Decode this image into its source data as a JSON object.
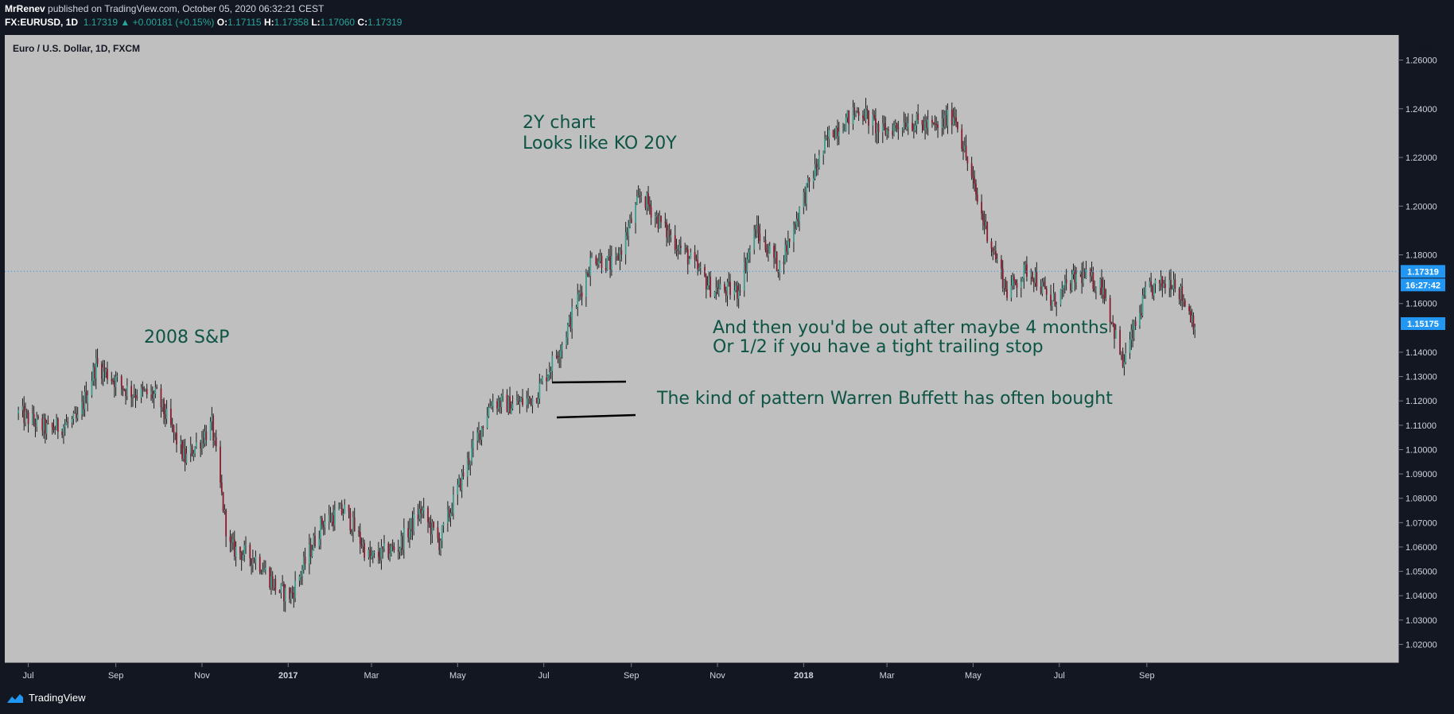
{
  "header": {
    "author": "MrRenev",
    "published": "published on TradingView.com, October 05, 2020 06:32:21 CEST",
    "symbol": "FX:EURUSD, 1D",
    "last": "1.17319",
    "change": "+0.00181 (+0.15%)",
    "o_label": "O:",
    "o": "1.17115",
    "h_label": "H:",
    "h": "1.17358",
    "l_label": "L:",
    "l": "1.17060",
    "c_label": "C:",
    "c": "1.17319"
  },
  "chart": {
    "legend": "Euro / U.S. Dollar, 1D, FXCM",
    "currency": "USD",
    "price_tag": "1.17319",
    "countdown": "16:27:42",
    "secondary_tag": "1.15175"
  },
  "footer": {
    "brand": "TradingView"
  },
  "colors": {
    "background": "#131722",
    "plot": "#bfbfbf",
    "up": "#3d9c8c",
    "down": "#8b1a2e",
    "annotation": "#0e5445",
    "tag": "#2196f3"
  },
  "chart_data": {
    "type": "candlestick",
    "title": "Euro / U.S. Dollar, 1D, FXCM",
    "y_range": [
      1.0123,
      1.2703
    ],
    "y_ticks": [
      "1.26000",
      "1.24000",
      "1.22000",
      "1.20000",
      "1.18000",
      "1.16000",
      "1.14000",
      "1.13000",
      "1.12000",
      "1.11000",
      "1.10000",
      "1.09000",
      "1.08000",
      "1.07000",
      "1.06000",
      "1.05000",
      "1.04000",
      "1.03000",
      "1.02000"
    ],
    "x_ticks": [
      "Jul",
      "Sep",
      "Nov",
      "2017",
      "Mar",
      "May",
      "Jul",
      "Sep",
      "Nov",
      "2018",
      "Mar",
      "May",
      "Jul",
      "Sep"
    ],
    "path": [
      {
        "date": "2016-06-24",
        "price": 1.115
      },
      {
        "date": "2016-07-15",
        "price": 1.108
      },
      {
        "date": "2016-08-05",
        "price": 1.112
      },
      {
        "date": "2016-08-18",
        "price": 1.135
      },
      {
        "date": "2016-09-10",
        "price": 1.124
      },
      {
        "date": "2016-09-30",
        "price": 1.122
      },
      {
        "date": "2016-10-20",
        "price": 1.096
      },
      {
        "date": "2016-11-08",
        "price": 1.11
      },
      {
        "date": "2016-11-20",
        "price": 1.06
      },
      {
        "date": "2016-12-10",
        "price": 1.055
      },
      {
        "date": "2016-12-25",
        "price": 1.042
      },
      {
        "date": "2017-01-03",
        "price": 1.04
      },
      {
        "date": "2017-01-25",
        "price": 1.07
      },
      {
        "date": "2017-02-10",
        "price": 1.075
      },
      {
        "date": "2017-02-28",
        "price": 1.055
      },
      {
        "date": "2017-03-20",
        "price": 1.06
      },
      {
        "date": "2017-04-05",
        "price": 1.075
      },
      {
        "date": "2017-04-18",
        "price": 1.062
      },
      {
        "date": "2017-05-05",
        "price": 1.09
      },
      {
        "date": "2017-05-25",
        "price": 1.12
      },
      {
        "date": "2017-06-10",
        "price": 1.118
      },
      {
        "date": "2017-06-25",
        "price": 1.122
      },
      {
        "date": "2017-07-15",
        "price": 1.145
      },
      {
        "date": "2017-08-05",
        "price": 1.18
      },
      {
        "date": "2017-08-20",
        "price": 1.175
      },
      {
        "date": "2017-09-08",
        "price": 1.205
      },
      {
        "date": "2017-09-25",
        "price": 1.19
      },
      {
        "date": "2017-10-10",
        "price": 1.18
      },
      {
        "date": "2017-10-28",
        "price": 1.166
      },
      {
        "date": "2017-11-15",
        "price": 1.165
      },
      {
        "date": "2017-11-28",
        "price": 1.19
      },
      {
        "date": "2017-12-15",
        "price": 1.175
      },
      {
        "date": "2018-01-02",
        "price": 1.205
      },
      {
        "date": "2018-01-20",
        "price": 1.23
      },
      {
        "date": "2018-02-10",
        "price": 1.24
      },
      {
        "date": "2018-02-25",
        "price": 1.23
      },
      {
        "date": "2018-03-15",
        "price": 1.235
      },
      {
        "date": "2018-04-05",
        "price": 1.232
      },
      {
        "date": "2018-04-18",
        "price": 1.238
      },
      {
        "date": "2018-05-05",
        "price": 1.2
      },
      {
        "date": "2018-05-25",
        "price": 1.165
      },
      {
        "date": "2018-06-10",
        "price": 1.175
      },
      {
        "date": "2018-06-25",
        "price": 1.16
      },
      {
        "date": "2018-07-15",
        "price": 1.172
      },
      {
        "date": "2018-08-01",
        "price": 1.167
      },
      {
        "date": "2018-08-15",
        "price": 1.135
      },
      {
        "date": "2018-09-01",
        "price": 1.165
      },
      {
        "date": "2018-09-20",
        "price": 1.17
      },
      {
        "date": "2018-10-05",
        "price": 1.152
      }
    ]
  },
  "annotations": {
    "sp2008": "2008 S&P",
    "chart2y_line1": "2Y chart",
    "chart2y_line2": "Looks like KO 20Y",
    "out_line1": "And then you'd be out after maybe 4 months",
    "out_line2": "Or 1/2 if you have a tight trailing stop",
    "buffett": "The kind of pattern Warren Buffett has often bought"
  }
}
